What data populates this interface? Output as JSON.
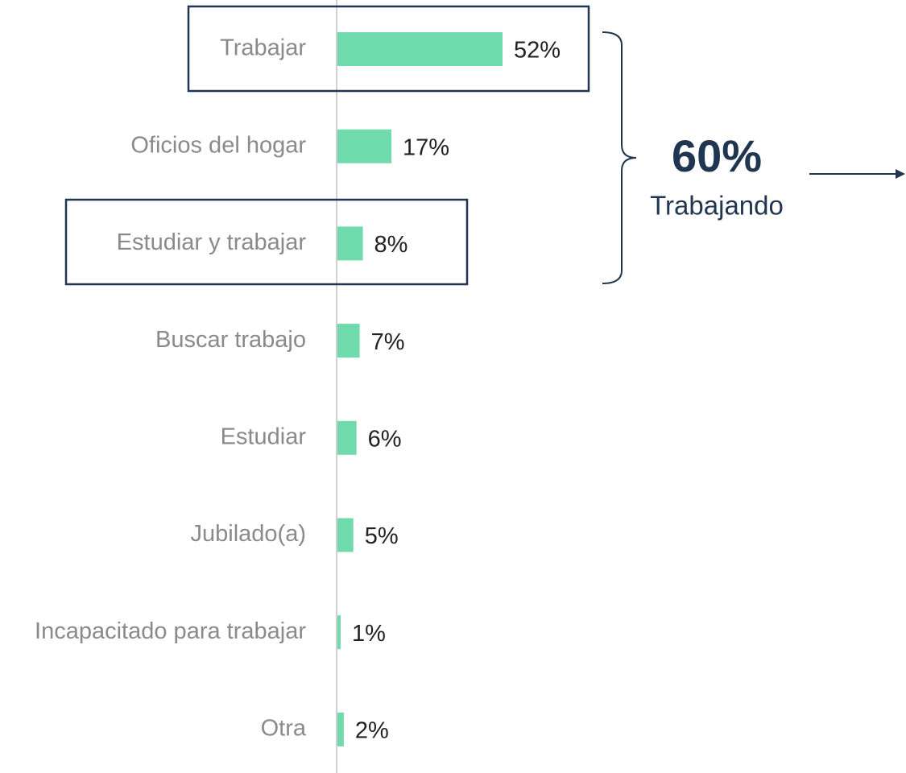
{
  "chart_data": {
    "type": "bar",
    "orientation": "horizontal",
    "categories": [
      "Trabajar",
      "Oficios del hogar",
      "Estudiar y trabajar",
      "Buscar trabajo",
      "Estudiar",
      "Jubilado(a)",
      "Incapacitado para trabajar",
      "Otra"
    ],
    "values": [
      52,
      17,
      8,
      7,
      6,
      5,
      1,
      2
    ],
    "value_labels": [
      "52%",
      "17%",
      "8%",
      "7%",
      "6%",
      "5%",
      "1%",
      "2%"
    ],
    "color": "#6fdaab",
    "annotation": {
      "value": "60%",
      "label": "Trabajando"
    }
  }
}
